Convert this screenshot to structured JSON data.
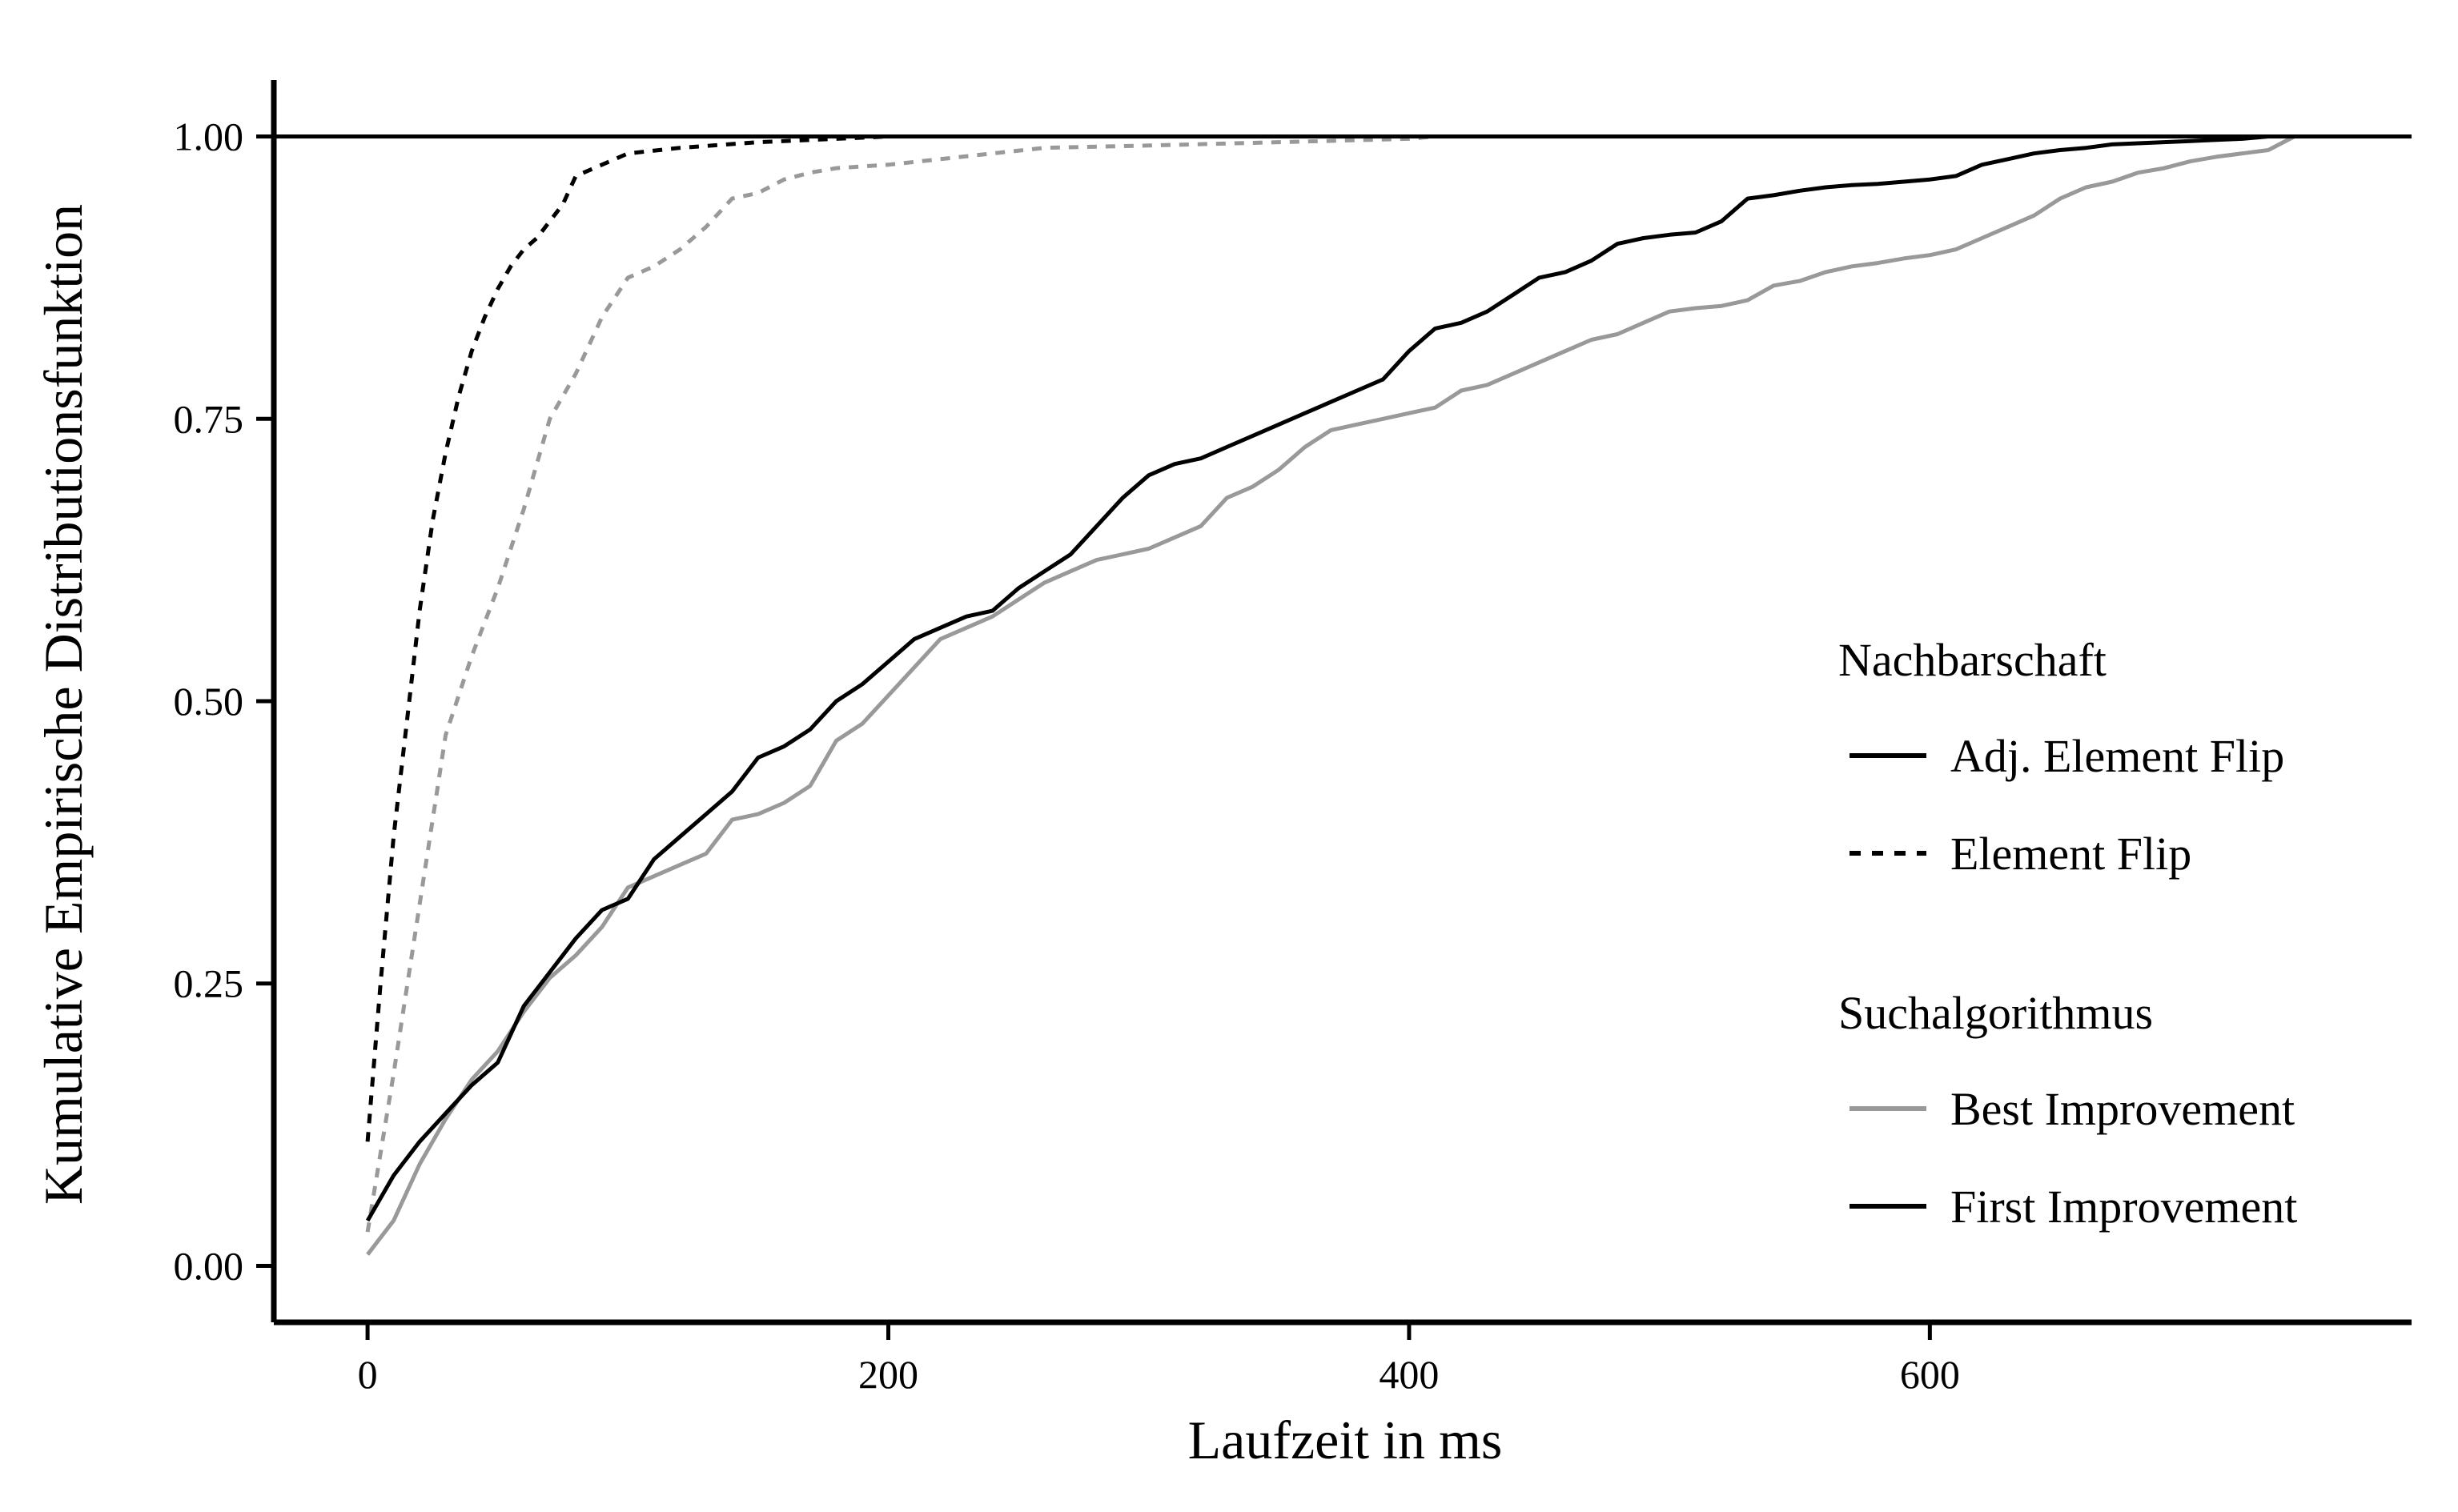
{
  "chart_data": {
    "type": "line",
    "title": "",
    "xlabel": "Laufzeit in ms",
    "ylabel": "Kumulative Empirische Distributionsfunktion",
    "xlim": [
      -36,
      785
    ],
    "ylim": [
      -0.05,
      1.05
    ],
    "x_ticks": [
      0,
      200,
      400,
      600
    ],
    "x_tick_labels": [
      "0",
      "200",
      "400",
      "600"
    ],
    "y_ticks": [
      0,
      0.25,
      0.5,
      0.75,
      1.0
    ],
    "y_tick_labels": [
      "0.00",
      "0.25",
      "0.50",
      "0.75",
      "1.00"
    ],
    "hline": 1.0,
    "grid": false,
    "legend_position": "right",
    "legend": {
      "groups": [
        {
          "title": "Nachbarschaft",
          "entries": [
            {
              "label": "Adj. Element Flip",
              "color": "#000000",
              "dash": "solid"
            },
            {
              "label": "Element Flip",
              "color": "#000000",
              "dash": "dashed"
            }
          ]
        },
        {
          "title": "Suchalgorithmus",
          "entries": [
            {
              "label": "Best Improvement",
              "color": "#999999",
              "dash": "solid"
            },
            {
              "label": "First Improvement",
              "color": "#000000",
              "dash": "solid"
            }
          ]
        }
      ]
    },
    "series": [
      {
        "neighborhood": "Adj. Element Flip",
        "algorithm": "First Improvement",
        "color": "#000000",
        "dash": "solid",
        "points": [
          [
            0,
            0.04
          ],
          [
            10,
            0.08
          ],
          [
            20,
            0.11
          ],
          [
            30,
            0.135
          ],
          [
            40,
            0.16
          ],
          [
            50,
            0.18
          ],
          [
            60,
            0.23
          ],
          [
            70,
            0.26
          ],
          [
            80,
            0.29
          ],
          [
            90,
            0.315
          ],
          [
            100,
            0.325
          ],
          [
            110,
            0.36
          ],
          [
            120,
            0.38
          ],
          [
            130,
            0.4
          ],
          [
            140,
            0.42
          ],
          [
            150,
            0.45
          ],
          [
            160,
            0.46
          ],
          [
            170,
            0.475
          ],
          [
            180,
            0.5
          ],
          [
            190,
            0.515
          ],
          [
            200,
            0.535
          ],
          [
            210,
            0.555
          ],
          [
            220,
            0.565
          ],
          [
            230,
            0.575
          ],
          [
            240,
            0.58
          ],
          [
            250,
            0.6
          ],
          [
            260,
            0.615
          ],
          [
            270,
            0.63
          ],
          [
            280,
            0.655
          ],
          [
            290,
            0.68
          ],
          [
            300,
            0.7
          ],
          [
            310,
            0.71
          ],
          [
            320,
            0.715
          ],
          [
            330,
            0.725
          ],
          [
            340,
            0.735
          ],
          [
            350,
            0.745
          ],
          [
            360,
            0.755
          ],
          [
            370,
            0.765
          ],
          [
            380,
            0.775
          ],
          [
            390,
            0.785
          ],
          [
            400,
            0.81
          ],
          [
            410,
            0.83
          ],
          [
            420,
            0.835
          ],
          [
            430,
            0.845
          ],
          [
            440,
            0.86
          ],
          [
            450,
            0.875
          ],
          [
            460,
            0.88
          ],
          [
            470,
            0.89
          ],
          [
            480,
            0.905
          ],
          [
            490,
            0.91
          ],
          [
            500,
            0.913
          ],
          [
            510,
            0.915
          ],
          [
            520,
            0.925
          ],
          [
            530,
            0.945
          ],
          [
            540,
            0.948
          ],
          [
            550,
            0.952
          ],
          [
            560,
            0.955
          ],
          [
            570,
            0.957
          ],
          [
            580,
            0.958
          ],
          [
            590,
            0.96
          ],
          [
            600,
            0.962
          ],
          [
            610,
            0.965
          ],
          [
            620,
            0.975
          ],
          [
            630,
            0.98
          ],
          [
            640,
            0.985
          ],
          [
            650,
            0.988
          ],
          [
            660,
            0.99
          ],
          [
            670,
            0.993
          ],
          [
            680,
            0.994
          ],
          [
            690,
            0.995
          ],
          [
            700,
            0.996
          ],
          [
            710,
            0.997
          ],
          [
            720,
            0.998
          ],
          [
            730,
            1.0
          ],
          [
            740,
            1.0
          ]
        ]
      },
      {
        "neighborhood": "Adj. Element Flip",
        "algorithm": "Best Improvement",
        "color": "#999999",
        "dash": "solid",
        "points": [
          [
            0,
            0.01
          ],
          [
            10,
            0.04
          ],
          [
            20,
            0.09
          ],
          [
            30,
            0.13
          ],
          [
            40,
            0.165
          ],
          [
            50,
            0.19
          ],
          [
            60,
            0.225
          ],
          [
            70,
            0.255
          ],
          [
            80,
            0.275
          ],
          [
            90,
            0.3
          ],
          [
            100,
            0.335
          ],
          [
            110,
            0.345
          ],
          [
            120,
            0.355
          ],
          [
            130,
            0.365
          ],
          [
            140,
            0.395
          ],
          [
            150,
            0.4
          ],
          [
            160,
            0.41
          ],
          [
            170,
            0.425
          ],
          [
            180,
            0.465
          ],
          [
            190,
            0.48
          ],
          [
            200,
            0.505
          ],
          [
            210,
            0.53
          ],
          [
            220,
            0.555
          ],
          [
            230,
            0.565
          ],
          [
            240,
            0.575
          ],
          [
            250,
            0.59
          ],
          [
            260,
            0.605
          ],
          [
            270,
            0.615
          ],
          [
            280,
            0.625
          ],
          [
            290,
            0.63
          ],
          [
            300,
            0.635
          ],
          [
            310,
            0.645
          ],
          [
            320,
            0.655
          ],
          [
            330,
            0.68
          ],
          [
            340,
            0.69
          ],
          [
            350,
            0.705
          ],
          [
            360,
            0.725
          ],
          [
            370,
            0.74
          ],
          [
            380,
            0.745
          ],
          [
            390,
            0.75
          ],
          [
            400,
            0.755
          ],
          [
            410,
            0.76
          ],
          [
            420,
            0.775
          ],
          [
            430,
            0.78
          ],
          [
            440,
            0.79
          ],
          [
            450,
            0.8
          ],
          [
            460,
            0.81
          ],
          [
            470,
            0.82
          ],
          [
            480,
            0.825
          ],
          [
            490,
            0.835
          ],
          [
            500,
            0.845
          ],
          [
            510,
            0.848
          ],
          [
            520,
            0.85
          ],
          [
            530,
            0.855
          ],
          [
            540,
            0.868
          ],
          [
            550,
            0.872
          ],
          [
            560,
            0.88
          ],
          [
            570,
            0.885
          ],
          [
            580,
            0.888
          ],
          [
            590,
            0.892
          ],
          [
            600,
            0.895
          ],
          [
            610,
            0.9
          ],
          [
            620,
            0.91
          ],
          [
            630,
            0.92
          ],
          [
            640,
            0.93
          ],
          [
            650,
            0.945
          ],
          [
            660,
            0.955
          ],
          [
            670,
            0.96
          ],
          [
            680,
            0.968
          ],
          [
            690,
            0.972
          ],
          [
            700,
            0.978
          ],
          [
            710,
            0.982
          ],
          [
            720,
            0.985
          ],
          [
            730,
            0.988
          ],
          [
            740,
            1.0
          ]
        ]
      },
      {
        "neighborhood": "Element Flip",
        "algorithm": "First Improvement",
        "color": "#000000",
        "dash": "dashed",
        "points": [
          [
            0,
            0.11
          ],
          [
            5,
            0.25
          ],
          [
            10,
            0.38
          ],
          [
            15,
            0.48
          ],
          [
            20,
            0.58
          ],
          [
            25,
            0.66
          ],
          [
            30,
            0.72
          ],
          [
            35,
            0.77
          ],
          [
            40,
            0.81
          ],
          [
            45,
            0.84
          ],
          [
            50,
            0.865
          ],
          [
            55,
            0.885
          ],
          [
            60,
            0.9
          ],
          [
            65,
            0.91
          ],
          [
            70,
            0.925
          ],
          [
            75,
            0.94
          ],
          [
            80,
            0.965
          ],
          [
            90,
            0.975
          ],
          [
            100,
            0.985
          ],
          [
            120,
            0.99
          ],
          [
            150,
            0.995
          ],
          [
            180,
            0.998
          ],
          [
            200,
            1.0
          ]
        ]
      },
      {
        "neighborhood": "Element Flip",
        "algorithm": "Best Improvement",
        "color": "#999999",
        "dash": "dashed",
        "points": [
          [
            0,
            0.03
          ],
          [
            10,
            0.17
          ],
          [
            20,
            0.32
          ],
          [
            30,
            0.47
          ],
          [
            40,
            0.54
          ],
          [
            50,
            0.6
          ],
          [
            60,
            0.67
          ],
          [
            70,
            0.75
          ],
          [
            80,
            0.79
          ],
          [
            90,
            0.84
          ],
          [
            100,
            0.875
          ],
          [
            110,
            0.885
          ],
          [
            120,
            0.9
          ],
          [
            130,
            0.92
          ],
          [
            140,
            0.945
          ],
          [
            150,
            0.95
          ],
          [
            160,
            0.962
          ],
          [
            170,
            0.968
          ],
          [
            180,
            0.972
          ],
          [
            200,
            0.975
          ],
          [
            220,
            0.98
          ],
          [
            240,
            0.985
          ],
          [
            260,
            0.99
          ],
          [
            300,
            0.992
          ],
          [
            350,
            0.995
          ],
          [
            400,
            0.998
          ],
          [
            410,
            1.0
          ]
        ]
      }
    ]
  }
}
